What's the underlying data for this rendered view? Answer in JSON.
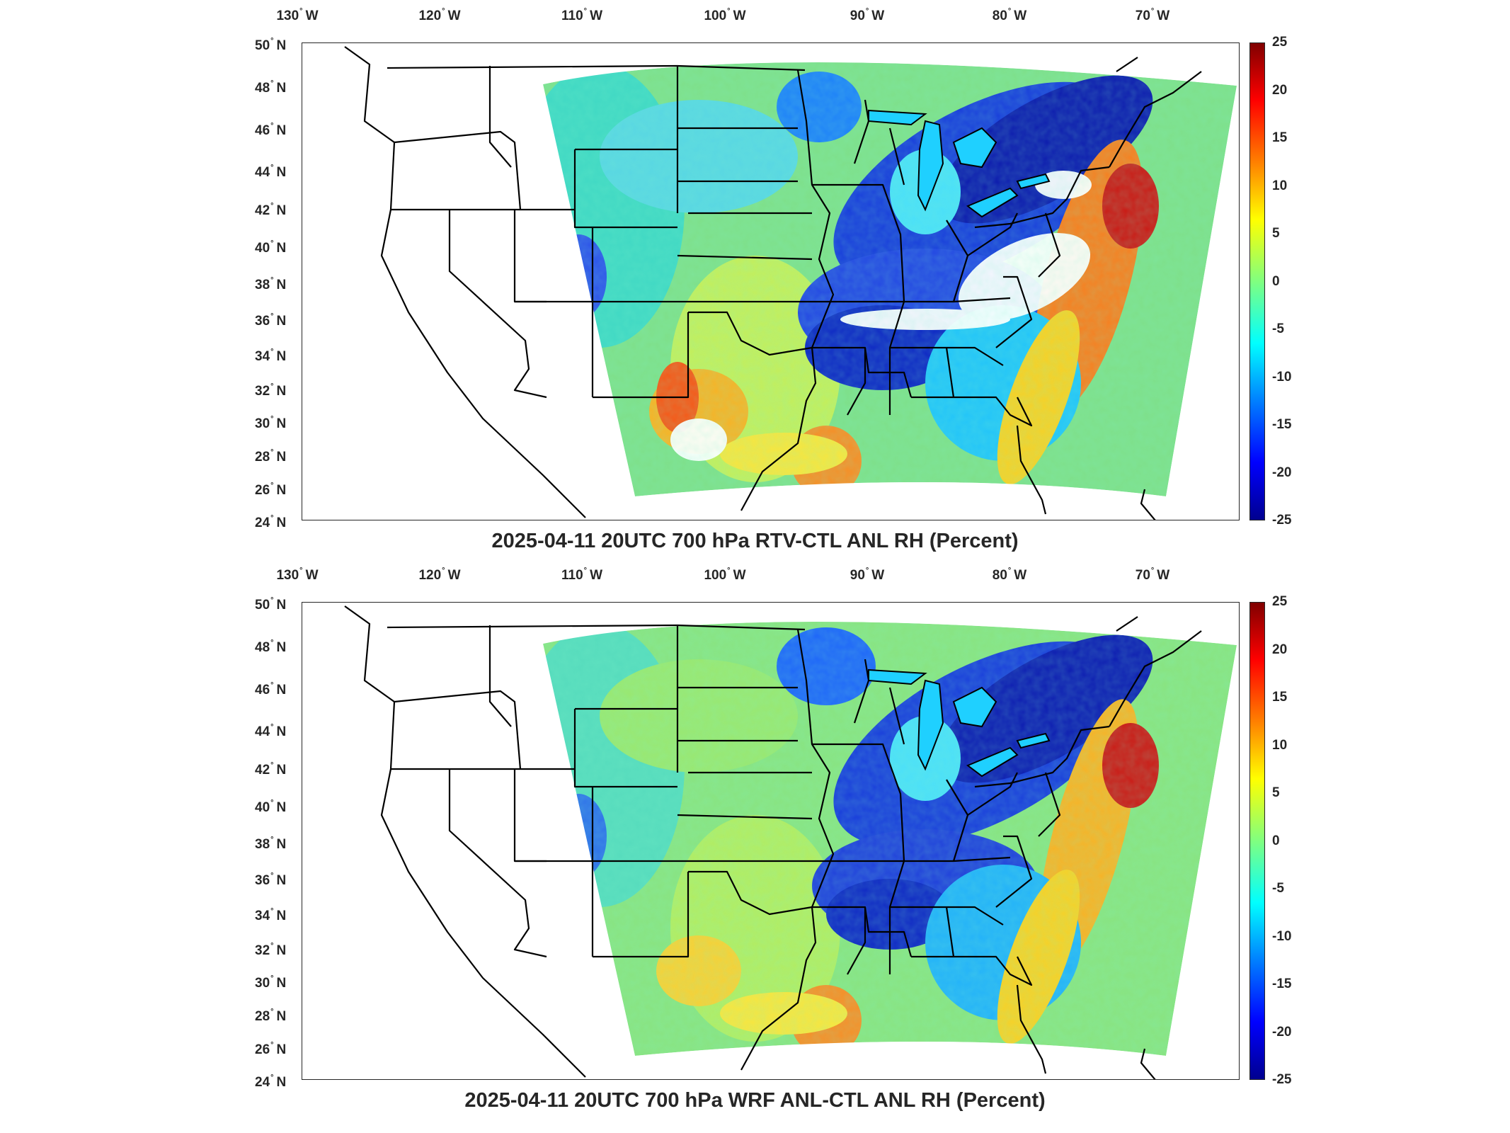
{
  "lon_labels": [
    {
      "deg": "130",
      "hem": "W"
    },
    {
      "deg": "120",
      "hem": "W"
    },
    {
      "deg": "110",
      "hem": "W"
    },
    {
      "deg": "100",
      "hem": "W"
    },
    {
      "deg": "90",
      "hem": "W"
    },
    {
      "deg": "80",
      "hem": "W"
    },
    {
      "deg": "70",
      "hem": "W"
    }
  ],
  "lat_labels": [
    {
      "deg": "50",
      "hem": "N"
    },
    {
      "deg": "48",
      "hem": "N"
    },
    {
      "deg": "46",
      "hem": "N"
    },
    {
      "deg": "44",
      "hem": "N"
    },
    {
      "deg": "42",
      "hem": "N"
    },
    {
      "deg": "40",
      "hem": "N"
    },
    {
      "deg": "38",
      "hem": "N"
    },
    {
      "deg": "36",
      "hem": "N"
    },
    {
      "deg": "34",
      "hem": "N"
    },
    {
      "deg": "32",
      "hem": "N"
    },
    {
      "deg": "30",
      "hem": "N"
    },
    {
      "deg": "28",
      "hem": "N"
    },
    {
      "deg": "26",
      "hem": "N"
    },
    {
      "deg": "24",
      "hem": "N"
    }
  ],
  "colorbar_ticks": [
    "25",
    "20",
    "15",
    "10",
    "5",
    "0",
    "-5",
    "-10",
    "-15",
    "-20",
    "-25"
  ],
  "colorbar_colors": [
    "#00008f",
    "#0000ff",
    "#0080ff",
    "#00ffff",
    "#80ff80",
    "#ffff00",
    "#ff8000",
    "#ff0000",
    "#800000"
  ],
  "panels": [
    {
      "title": "2025-04-11 20UTC 700 hPa RTV-CTL ANL RH (Percent)"
    },
    {
      "title": "2025-04-11 20UTC 700 hPa WRF ANL-CTL ANL RH (Percent)"
    }
  ]
}
